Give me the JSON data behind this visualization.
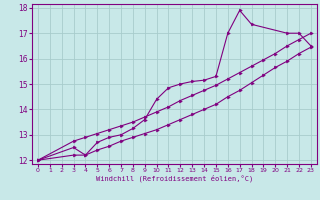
{
  "background_color": "#c8e8e8",
  "grid_color": "#a8cccc",
  "line_color": "#800080",
  "marker_color": "#800080",
  "xlabel": "Windchill (Refroidissement éolien,°C)",
  "xlim": [
    -0.5,
    23.5
  ],
  "ylim": [
    11.85,
    18.15
  ],
  "yticks": [
    12,
    13,
    14,
    15,
    16,
    17,
    18
  ],
  "xticks": [
    0,
    1,
    2,
    3,
    4,
    5,
    6,
    7,
    8,
    9,
    10,
    11,
    12,
    13,
    14,
    15,
    16,
    17,
    18,
    19,
    20,
    21,
    22,
    23
  ],
  "line1_x": [
    0,
    3,
    4,
    5,
    6,
    7,
    8,
    9,
    10,
    11,
    12,
    13,
    14,
    15,
    16,
    17,
    18,
    21,
    22,
    23
  ],
  "line1_y": [
    12.0,
    12.5,
    12.2,
    12.7,
    12.9,
    13.0,
    13.25,
    13.6,
    14.4,
    14.85,
    15.0,
    15.1,
    15.15,
    15.3,
    17.0,
    17.9,
    17.35,
    17.0,
    17.0,
    16.5
  ],
  "line2_x": [
    0,
    3,
    4,
    5,
    6,
    7,
    8,
    9,
    10,
    11,
    12,
    13,
    14,
    15,
    16,
    17,
    18,
    19,
    20,
    21,
    22,
    23
  ],
  "line2_y": [
    12.0,
    12.75,
    12.9,
    13.05,
    13.2,
    13.35,
    13.5,
    13.7,
    13.9,
    14.1,
    14.35,
    14.55,
    14.75,
    14.95,
    15.2,
    15.45,
    15.7,
    15.95,
    16.2,
    16.5,
    16.75,
    17.0
  ],
  "line3_x": [
    0,
    3,
    4,
    5,
    6,
    7,
    8,
    9,
    10,
    11,
    12,
    13,
    14,
    15,
    16,
    17,
    18,
    19,
    20,
    21,
    22,
    23
  ],
  "line3_y": [
    12.0,
    12.2,
    12.2,
    12.4,
    12.55,
    12.75,
    12.9,
    13.05,
    13.2,
    13.4,
    13.6,
    13.8,
    14.0,
    14.2,
    14.5,
    14.75,
    15.05,
    15.35,
    15.65,
    15.9,
    16.2,
    16.45
  ]
}
